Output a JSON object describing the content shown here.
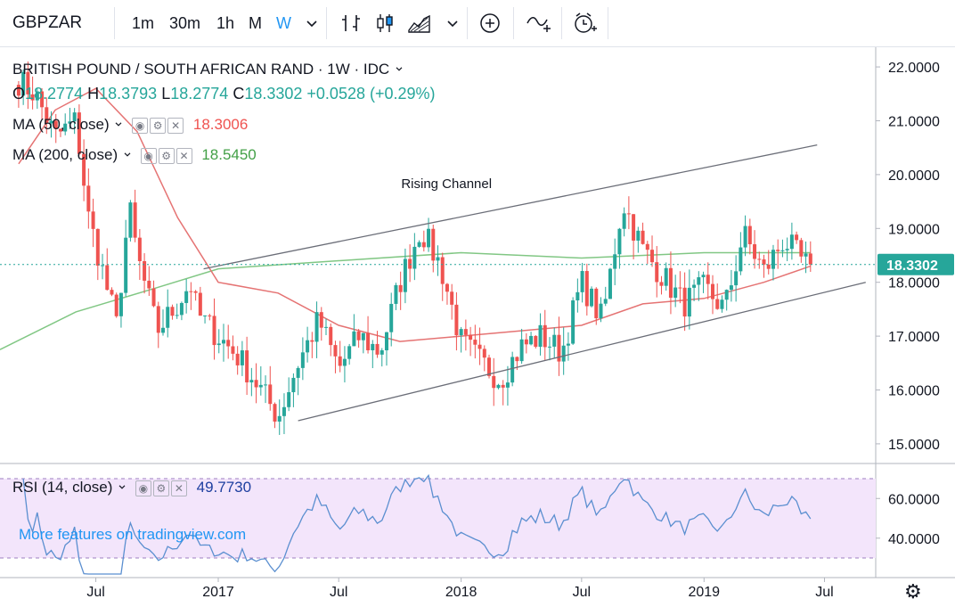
{
  "toolbar": {
    "symbol": "GBPZAR",
    "intervals": [
      "1m",
      "30m",
      "1h",
      "M",
      "W"
    ],
    "active_interval": "W",
    "dropdown_icon": "chevron-down-icon",
    "tools": [
      "bar-style-icon",
      "candles-icon",
      "area-icon",
      "chevron-down-icon",
      "add-indicator-icon",
      "compare-icon",
      "alert-clock-icon"
    ]
  },
  "legend": {
    "title": "BRITISH POUND / SOUTH AFRICAN RAND · 1W · IDC",
    "o_label": "O",
    "o": "18.2774",
    "h_label": "H",
    "h": "18.3793",
    "l_label": "L",
    "l": "18.2774",
    "c_label": "C",
    "c": "18.3302",
    "change": "+0.0528 (+0.29%)",
    "ma50_label": "MA (50, close)",
    "ma50_value": "18.3006",
    "ma200_label": "MA (200, close)",
    "ma200_value": "18.5450",
    "rsi_label": "RSI (14, close)",
    "rsi_value": "49.7730"
  },
  "colors": {
    "up": "#26a69a",
    "down": "#ef5350",
    "ma50": "#e57373",
    "ma200": "#81c784",
    "rsi": "#5b8fd0",
    "rsi_fill": "#f3e5fb",
    "accent": "#2196f3",
    "price_tag": "#26a69a"
  },
  "watermark": "More features on tradingview.com",
  "settings_icon": "gear-icon",
  "chart_data": {
    "type": "candlestick",
    "instrument": "GBPZAR",
    "interval": "1W",
    "x_labels": [
      "Jul",
      "2017",
      "Jul",
      "2018",
      "Jul",
      "2019",
      "Jul"
    ],
    "y_ticks": [
      "22.0000",
      "21.0000",
      "20.0000",
      "19.0000",
      "18.0000",
      "17.0000",
      "16.0000",
      "15.0000"
    ],
    "ylim": [
      14.8,
      22.2
    ],
    "last_price": "18.3302",
    "annotation": "Rising Channel",
    "channel_upper": [
      {
        "x": "2016-12",
        "y": 18.25
      },
      {
        "x": "2019-06",
        "y": 20.55
      }
    ],
    "channel_lower": [
      {
        "x": "2017-05",
        "y": 15.43
      },
      {
        "x": "2019-09",
        "y": 18.0
      }
    ],
    "ma200_period": 200,
    "ma50_period": 50,
    "close_path": [
      {
        "x": "2016-03",
        "y": 21.8
      },
      {
        "x": "2016-04",
        "y": 21.5
      },
      {
        "x": "2016-05",
        "y": 20.7
      },
      {
        "x": "2016-06",
        "y": 21.0
      },
      {
        "x": "2016-06-20",
        "y": 19.2
      },
      {
        "x": "2016-07",
        "y": 18.7
      },
      {
        "x": "2016-08",
        "y": 17.2
      },
      {
        "x": "2016-08-20",
        "y": 19.4
      },
      {
        "x": "2016-09",
        "y": 18.5
      },
      {
        "x": "2016-10",
        "y": 17.1
      },
      {
        "x": "2016-11",
        "y": 17.6
      },
      {
        "x": "2016-11-20",
        "y": 18.0
      },
      {
        "x": "2016-12",
        "y": 17.4
      },
      {
        "x": "2017-01",
        "y": 17.0
      },
      {
        "x": "2017-02",
        "y": 16.6
      },
      {
        "x": "2017-03",
        "y": 16.1
      },
      {
        "x": "2017-04",
        "y": 15.5
      },
      {
        "x": "2017-05",
        "y": 16.5
      },
      {
        "x": "2017-06",
        "y": 17.3
      },
      {
        "x": "2017-07",
        "y": 16.4
      },
      {
        "x": "2017-08",
        "y": 17.0
      },
      {
        "x": "2017-09",
        "y": 16.7
      },
      {
        "x": "2017-10",
        "y": 18.0
      },
      {
        "x": "2017-11",
        "y": 19.0
      },
      {
        "x": "2017-12",
        "y": 18.3
      },
      {
        "x": "2018-01",
        "y": 16.9
      },
      {
        "x": "2018-02",
        "y": 16.5
      },
      {
        "x": "2018-03",
        "y": 16.2
      },
      {
        "x": "2018-04",
        "y": 16.8
      },
      {
        "x": "2018-05",
        "y": 17.0
      },
      {
        "x": "2018-06",
        "y": 16.7
      },
      {
        "x": "2018-07",
        "y": 18.0
      },
      {
        "x": "2018-08",
        "y": 17.3
      },
      {
        "x": "2018-09",
        "y": 19.5
      },
      {
        "x": "2018-10",
        "y": 18.6
      },
      {
        "x": "2018-11",
        "y": 18.1
      },
      {
        "x": "2018-12",
        "y": 17.6
      },
      {
        "x": "2019-01",
        "y": 17.9
      },
      {
        "x": "2019-02",
        "y": 17.5
      },
      {
        "x": "2019-03",
        "y": 18.9
      },
      {
        "x": "2019-04",
        "y": 18.2
      },
      {
        "x": "2019-05",
        "y": 18.8
      },
      {
        "x": "2019-06",
        "y": 18.33
      }
    ],
    "rsi": {
      "ticks": [
        "60.0000",
        "40.0000"
      ],
      "bands": [
        70,
        30
      ],
      "last": 49.773
    }
  }
}
